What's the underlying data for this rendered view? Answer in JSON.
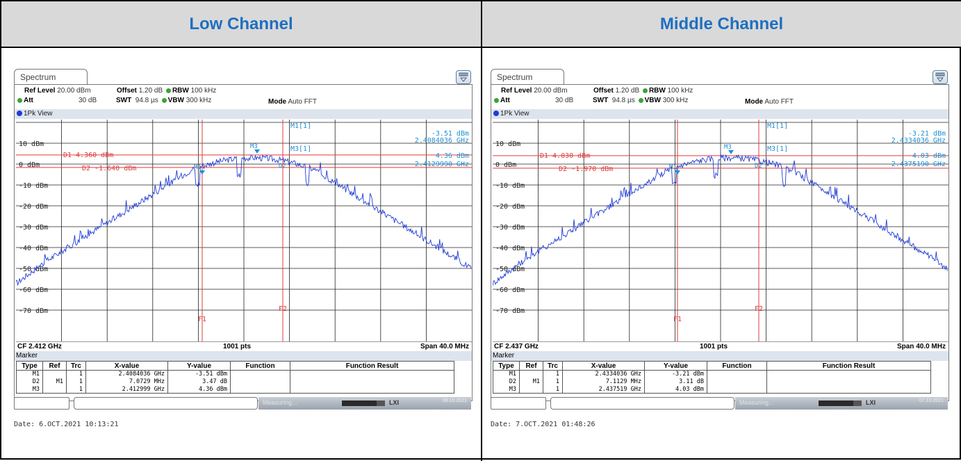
{
  "columns": [
    {
      "title": "Low Channel"
    },
    {
      "title": "Middle Channel"
    }
  ],
  "panels": [
    {
      "tab_label": "Spectrum",
      "ref_level_label": "Ref Level",
      "ref_level": "20.00 dBm",
      "offset_label": "Offset",
      "offset": "1.20 dB",
      "rbw_label": "RBW",
      "rbw": "100 kHz",
      "att_label": "Att",
      "att": "30 dB",
      "swt_label": "SWT",
      "swt": "94.8 µs",
      "vbw_label": "VBW",
      "vbw": "300 kHz",
      "mode_label": "Mode",
      "mode": "Auto FFT",
      "view_label": "1Pk View",
      "y_labels": [
        "10 dBm",
        "0 dBm",
        "-10 dBm",
        "-20 dBm",
        "-30 dBm",
        "-40 dBm",
        "-50 dBm",
        "-60 dBm",
        "-70 dBm"
      ],
      "d1_label": "D1 4.360 dBm",
      "d2_label": "D2 -1.640 dBm",
      "marker_readout": [
        "M1[1]",
        "-3.51 dBm",
        "2.4084036 GHz",
        "M3[1]",
        "4.36 dBm",
        "2.4129990 GHz"
      ],
      "m1_tag": "M1",
      "m3_tag": "M3",
      "d2_tag": "D2",
      "f1_tag": "F1",
      "f2_tag": "F2",
      "cf": "CF 2.412 GHz",
      "pts": "1001 pts",
      "span": "Span 40.0 MHz",
      "marker_title": "Marker",
      "table_headers": [
        "Type",
        "Ref",
        "Trc",
        "X-value",
        "Y-value",
        "Function",
        "Function Result"
      ],
      "rows": [
        [
          "M1",
          "",
          "1",
          "2.4084036 GHz",
          "-3.51 dBm",
          "",
          ""
        ],
        [
          "D2",
          "M1",
          "1",
          "7.0729 MHz",
          "3.47 dB",
          "",
          ""
        ],
        [
          "M3",
          "",
          "1",
          "2.412999 GHz",
          "4.36 dBm",
          "",
          ""
        ]
      ],
      "measuring": "Measuring...",
      "status_date": "06.10.2021",
      "lxi": "LXI",
      "date_line": "Date: 6.OCT.2021  10:13:21"
    },
    {
      "tab_label": "Spectrum",
      "ref_level_label": "Ref Level",
      "ref_level": "20.00 dBm",
      "offset_label": "Offset",
      "offset": "1.20 dB",
      "rbw_label": "RBW",
      "rbw": "100 kHz",
      "att_label": "Att",
      "att": "30 dB",
      "swt_label": "SWT",
      "swt": "94.8 µs",
      "vbw_label": "VBW",
      "vbw": "300 kHz",
      "mode_label": "Mode",
      "mode": "Auto FFT",
      "view_label": "1Pk View",
      "y_labels": [
        "10 dBm",
        "0 dBm",
        "-10 dBm",
        "-20 dBm",
        "-30 dBm",
        "-40 dBm",
        "-50 dBm",
        "-60 dBm",
        "-70 dBm"
      ],
      "d1_label": "D1 4.030 dBm",
      "d2_label": "D2 -1.970 dBm",
      "marker_readout": [
        "M1[1]",
        "-3.21 dBm",
        "2.4334036 GHz",
        "M3[1]",
        "4.03 dBm",
        "2.4375190 GHz"
      ],
      "m1_tag": "M1",
      "m3_tag": "M3",
      "d2_tag": "D2",
      "f1_tag": "F1",
      "f2_tag": "F2",
      "cf": "CF 2.437 GHz",
      "pts": "1001 pts",
      "span": "Span 40.0 MHz",
      "marker_title": "Marker",
      "table_headers": [
        "Type",
        "Ref",
        "Trc",
        "X-value",
        "Y-value",
        "Function",
        "Function Result"
      ],
      "rows": [
        [
          "M1",
          "",
          "1",
          "2.4334036 GHz",
          "-3.21 dBm",
          "",
          ""
        ],
        [
          "D2",
          "M1",
          "1",
          "7.1129 MHz",
          "3.11 dB",
          "",
          ""
        ],
        [
          "M3",
          "",
          "1",
          "2.437519 GHz",
          "4.03 dBm",
          "",
          ""
        ]
      ],
      "measuring": "Measuring...",
      "status_date": "07.10.2021",
      "lxi": "LXI",
      "date_line": "Date: 7.OCT.2021  01:48:26"
    }
  ],
  "colors": {
    "header_text": "#1f6fc0",
    "header_bg": "#d9d9d9",
    "trace": "#1f3cd6",
    "limit": "#e03b3b",
    "marker": "#1f8fd6"
  }
}
